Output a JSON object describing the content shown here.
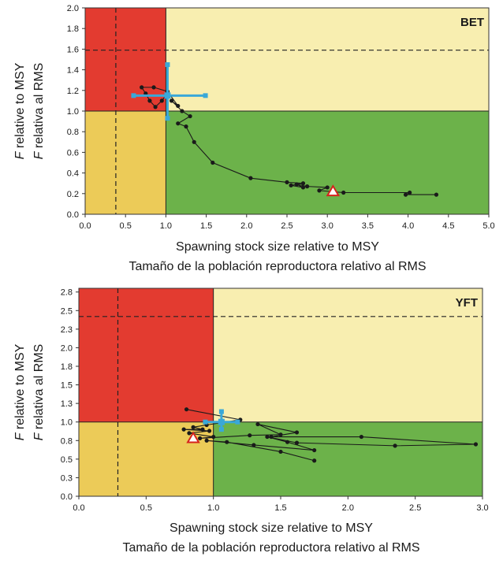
{
  "chart_data": [
    {
      "type": "scatter",
      "title": "BET",
      "xlabel": [
        "Spawning stock size relative to MSY",
        "Tamaño de la población reproductora relativo al RMS"
      ],
      "ylabel": [
        {
          "italic": "F",
          "rest": " relative to MSY"
        },
        {
          "italic": "F",
          "rest": " relativa al RMS"
        }
      ],
      "xlim": [
        0,
        5
      ],
      "ylim": [
        0,
        2
      ],
      "x_ticks": [
        "0.0",
        "0.5",
        "1.0",
        "1.5",
        "2.0",
        "2.5",
        "3.0",
        "3.5",
        "4.0",
        "4.5",
        "5.0"
      ],
      "y_ticks": [
        "0.0",
        "0.2",
        "0.4",
        "0.6",
        "0.8",
        "1.0",
        "1.2",
        "1.4",
        "1.6",
        "1.8",
        "2.0"
      ],
      "zones": [
        {
          "x": [
            0,
            1
          ],
          "y": [
            1,
            2
          ],
          "color": "#e33b30"
        },
        {
          "x": [
            1,
            5
          ],
          "y": [
            1,
            2
          ],
          "color": "#f8eeb0"
        },
        {
          "x": [
            0,
            1
          ],
          "y": [
            0,
            1
          ],
          "color": "#eccb58"
        },
        {
          "x": [
            1,
            5
          ],
          "y": [
            0,
            1
          ],
          "color": "#6cb24a"
        }
      ],
      "reference_lines": {
        "x_dashed": 0.38,
        "y_dashed": 1.59,
        "x_solid": 1.0,
        "y_solid": 1.0
      },
      "trajectory": [
        [
          4.35,
          0.19
        ],
        [
          3.97,
          0.19
        ],
        [
          4.02,
          0.21
        ],
        [
          3.2,
          0.21
        ],
        [
          2.9,
          0.23
        ],
        [
          3.0,
          0.26
        ],
        [
          2.75,
          0.27
        ],
        [
          2.62,
          0.29
        ],
        [
          2.7,
          0.26
        ],
        [
          2.55,
          0.28
        ],
        [
          2.7,
          0.3
        ],
        [
          2.5,
          0.31
        ],
        [
          2.05,
          0.35
        ],
        [
          1.58,
          0.5
        ],
        [
          1.35,
          0.7
        ],
        [
          1.25,
          0.85
        ],
        [
          1.15,
          0.88
        ],
        [
          1.3,
          0.95
        ],
        [
          1.2,
          1.0
        ],
        [
          1.07,
          1.1
        ],
        [
          1.15,
          1.05
        ],
        [
          1.02,
          1.19
        ],
        [
          0.85,
          1.23
        ],
        [
          0.7,
          1.23
        ],
        [
          0.75,
          1.17
        ],
        [
          0.8,
          1.1
        ],
        [
          0.87,
          1.04
        ],
        [
          0.95,
          1.1
        ],
        [
          1.0,
          1.15
        ]
      ],
      "current": {
        "x": 1.02,
        "y": 1.15,
        "x_ci": [
          0.6,
          1.49
        ],
        "y_ci": [
          0.93,
          1.45
        ],
        "color": "#3aa8d8"
      },
      "reference_point": {
        "x": 3.07,
        "y": 0.22,
        "marker": "triangle"
      }
    },
    {
      "type": "scatter",
      "title": "YFT",
      "xlabel": [
        "Spawning stock size relative to MSY",
        "Tamaño de la población reproductora relativo al RMS"
      ],
      "ylabel": [
        {
          "italic": "F",
          "rest": " relative to MSY"
        },
        {
          "italic": "F",
          "rest": " relativa al RMS"
        }
      ],
      "xlim": [
        0,
        3
      ],
      "ylim": [
        0,
        2.8
      ],
      "x_ticks": [
        "0.0",
        "0.5",
        "1.0",
        "1.5",
        "2.0",
        "2.5",
        "3.0"
      ],
      "y_ticks": [
        "0.0",
        "0.3",
        "0.5",
        "0.8",
        "1.0",
        "1.3",
        "1.5",
        "1.8",
        "2.0",
        "2.3",
        "2.5",
        "2.8"
      ],
      "y_tick_values": [
        0,
        0.25,
        0.5,
        0.75,
        1.0,
        1.25,
        1.5,
        1.75,
        2.0,
        2.25,
        2.5,
        2.75
      ],
      "zones": [
        {
          "x": [
            0,
            1
          ],
          "y": [
            1,
            2.8
          ],
          "color": "#e33b30"
        },
        {
          "x": [
            1,
            3
          ],
          "y": [
            1,
            2.8
          ],
          "color": "#f8eeb0"
        },
        {
          "x": [
            0,
            1
          ],
          "y": [
            0,
            1
          ],
          "color": "#eccb58"
        },
        {
          "x": [
            1,
            3
          ],
          "y": [
            0,
            1
          ],
          "color": "#6cb24a"
        }
      ],
      "reference_lines": {
        "x_dashed": 0.29,
        "y_dashed": 2.42,
        "x_solid": 1.0,
        "y_solid": 1.0
      },
      "trajectory": [
        [
          0.8,
          1.17
        ],
        [
          1.2,
          1.03
        ],
        [
          0.95,
          0.96
        ],
        [
          0.85,
          0.93
        ],
        [
          0.92,
          0.9
        ],
        [
          0.78,
          0.9
        ],
        [
          0.97,
          0.88
        ],
        [
          0.82,
          0.85
        ],
        [
          1.0,
          0.8
        ],
        [
          0.9,
          0.78
        ],
        [
          1.27,
          0.82
        ],
        [
          1.5,
          0.83
        ],
        [
          1.33,
          0.97
        ],
        [
          1.62,
          0.86
        ],
        [
          1.43,
          0.8
        ],
        [
          2.1,
          0.8
        ],
        [
          2.95,
          0.7
        ],
        [
          2.35,
          0.68
        ],
        [
          1.62,
          0.72
        ],
        [
          1.4,
          0.8
        ],
        [
          1.55,
          0.73
        ],
        [
          1.75,
          0.62
        ],
        [
          1.3,
          0.69
        ],
        [
          0.95,
          0.75
        ],
        [
          1.1,
          0.73
        ],
        [
          1.5,
          0.6
        ],
        [
          1.75,
          0.48
        ]
      ],
      "current": {
        "x": 1.06,
        "y": 1.0,
        "x_ci": [
          0.94,
          1.18
        ],
        "y_ci": [
          0.9,
          1.14
        ],
        "color": "#3aa8d8"
      },
      "reference_point": {
        "x": 0.85,
        "y": 0.78,
        "marker": "triangle"
      }
    }
  ]
}
